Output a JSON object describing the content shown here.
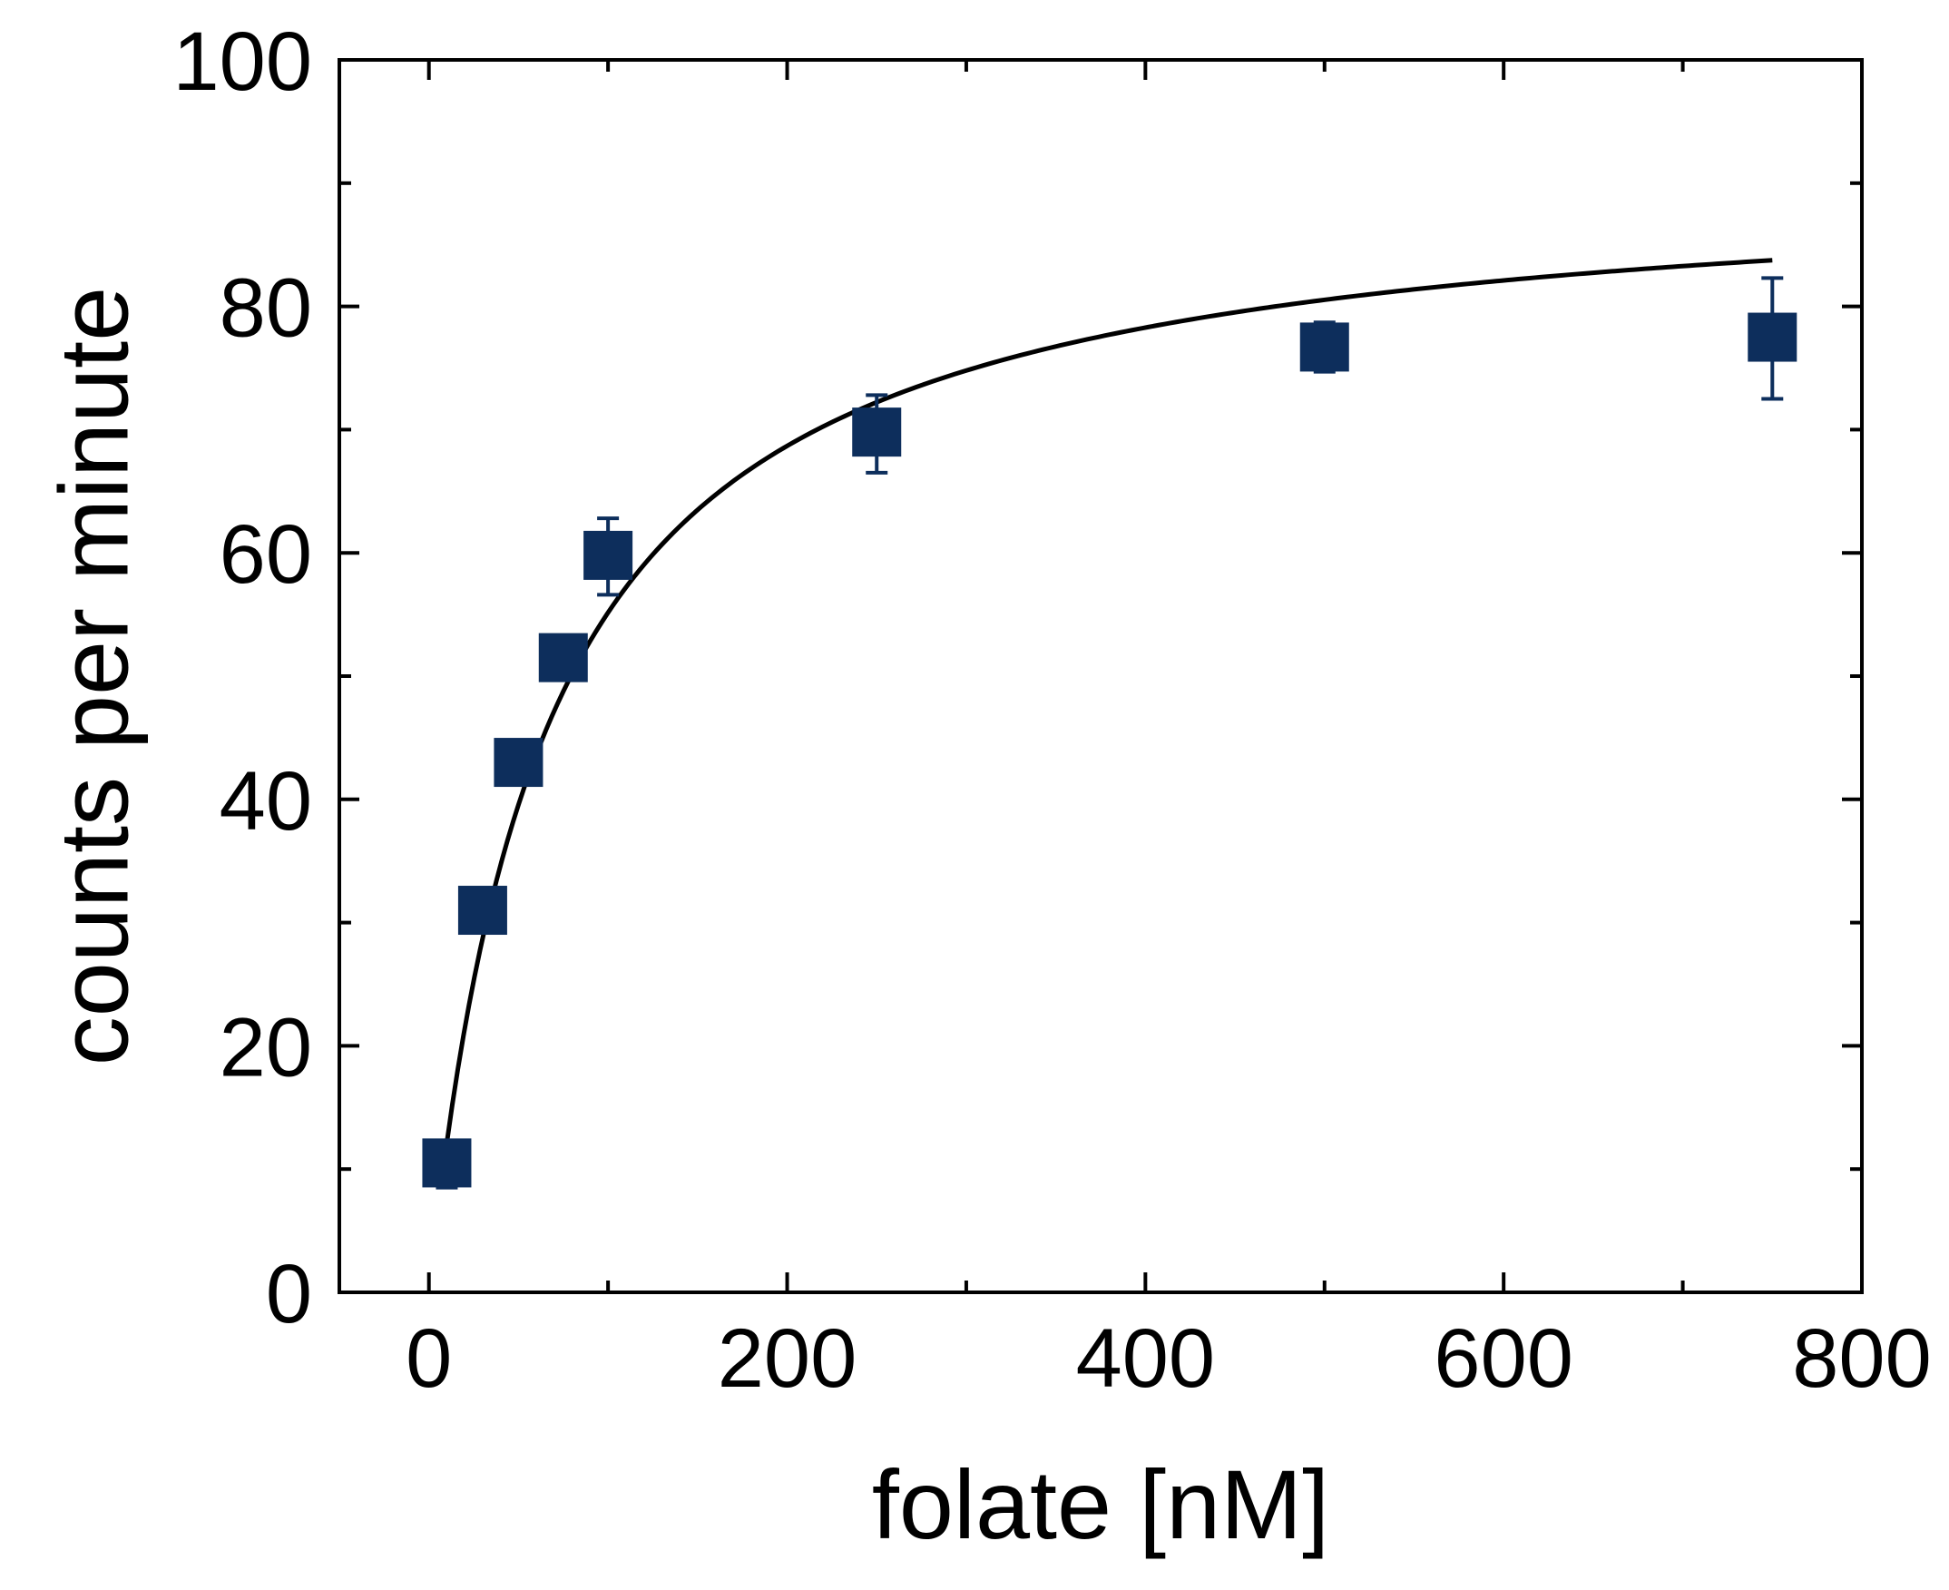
{
  "chart_data": {
    "type": "scatter",
    "title": "",
    "xlabel": "folate [nM]",
    "ylabel": "counts per minute",
    "xlim": [
      -50,
      800
    ],
    "ylim": [
      0,
      100
    ],
    "x_ticks": [
      0,
      200,
      400,
      600,
      800
    ],
    "y_ticks": [
      0,
      20,
      40,
      60,
      80,
      100
    ],
    "x_tick_labels": [
      "0",
      "200",
      "400",
      "600",
      "800"
    ],
    "y_tick_labels": [
      "0",
      "20",
      "40",
      "60",
      "80",
      "100"
    ],
    "x_minor_ticks": [
      100,
      300,
      500,
      700
    ],
    "y_minor_ticks": [
      10,
      30,
      50,
      70,
      90
    ],
    "grid": false,
    "legend": "none",
    "series": [
      {
        "marker": "square",
        "color": "#0d2e5c",
        "points": [
          {
            "x": 10,
            "y": 10.5,
            "err_low": 2.0,
            "err_high": 0.5
          },
          {
            "x": 30,
            "y": 31.0,
            "err_low": 0.5,
            "err_high": 0.5
          },
          {
            "x": 50,
            "y": 43.0,
            "err_low": 0.5,
            "err_high": 0.5
          },
          {
            "x": 75,
            "y": 51.5,
            "err_low": 0.5,
            "err_high": 0.5
          },
          {
            "x": 100,
            "y": 59.8,
            "err_low": 3.2,
            "err_high": 3.0
          },
          {
            "x": 250,
            "y": 69.8,
            "err_low": 3.3,
            "err_high": 3.0
          },
          {
            "x": 500,
            "y": 76.7,
            "err_low": 2.0,
            "err_high": 2.0
          },
          {
            "x": 750,
            "y": 77.5,
            "err_low": 5.0,
            "err_high": 4.8
          }
        ]
      },
      {
        "type": "line",
        "color": "#000000",
        "model": "hyperbolic fit",
        "vmax": 91,
        "km": 65,
        "x_range": [
          10,
          750
        ]
      }
    ]
  }
}
